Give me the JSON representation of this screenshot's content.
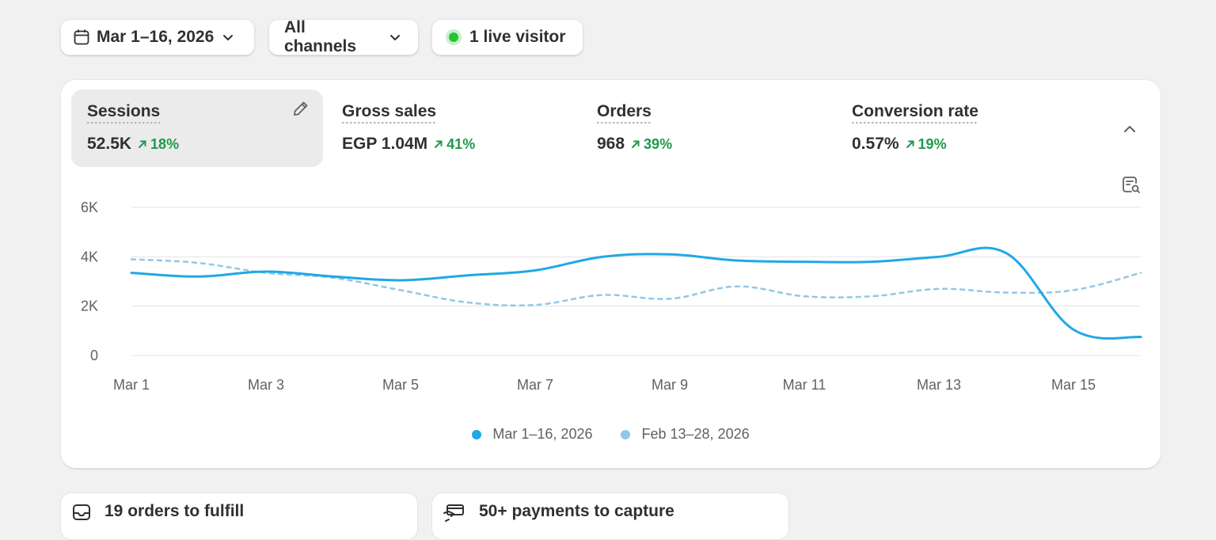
{
  "filters": {
    "date_range": "Mar 1–16, 2026",
    "channel": "All channels",
    "live_visitors": "1 live visitor"
  },
  "metrics": [
    {
      "label": "Sessions",
      "value": "52.5K",
      "change": "18%",
      "active": true
    },
    {
      "label": "Gross sales",
      "value": "EGP 1.04M",
      "change": "41%"
    },
    {
      "label": "Orders",
      "value": "968",
      "change": "39%"
    },
    {
      "label": "Conversion rate",
      "value": "0.57%",
      "change": "19%"
    }
  ],
  "colors": {
    "current_series": "#1fa8e6",
    "previous_series": "#8fc8e8",
    "positive_change": "#1d9a4a",
    "live_dot": "#29c432"
  },
  "chart_data": {
    "type": "line",
    "ylim": [
      0,
      6000
    ],
    "y_ticks": [
      "0",
      "2K",
      "4K",
      "6K"
    ],
    "x_tick_labels": [
      "Mar 1",
      "Mar 3",
      "Mar 5",
      "Mar 7",
      "Mar 9",
      "Mar 11",
      "Mar 13",
      "Mar 15"
    ],
    "grid": true,
    "legend_position": "bottom",
    "series": [
      {
        "name": "Mar 1–16, 2026",
        "style": "solid",
        "x": [
          "Mar 1",
          "Mar 2",
          "Mar 3",
          "Mar 4",
          "Mar 5",
          "Mar 6",
          "Mar 7",
          "Mar 8",
          "Mar 9",
          "Mar 10",
          "Mar 11",
          "Mar 12",
          "Mar 13",
          "Mar 14",
          "Mar 15",
          "Mar 16"
        ],
        "values": [
          3350,
          3200,
          3400,
          3200,
          3050,
          3250,
          3450,
          4000,
          4100,
          3850,
          3800,
          3800,
          4000,
          4150,
          1050,
          750
        ]
      },
      {
        "name": "Feb 13–28, 2026",
        "style": "dashed",
        "x": [
          "Mar 1",
          "Mar 2",
          "Mar 3",
          "Mar 4",
          "Mar 5",
          "Mar 6",
          "Mar 7",
          "Mar 8",
          "Mar 9",
          "Mar 10",
          "Mar 11",
          "Mar 12",
          "Mar 13",
          "Mar 14",
          "Mar 15",
          "Mar 16"
        ],
        "values": [
          3900,
          3750,
          3350,
          3150,
          2650,
          2150,
          2050,
          2450,
          2300,
          2800,
          2400,
          2400,
          2700,
          2550,
          2650,
          3350
        ]
      }
    ]
  },
  "tasks": [
    {
      "label": "19 orders to fulfill",
      "icon": "inbox-icon"
    },
    {
      "label": "50+ payments to capture",
      "icon": "payment-icon"
    }
  ]
}
